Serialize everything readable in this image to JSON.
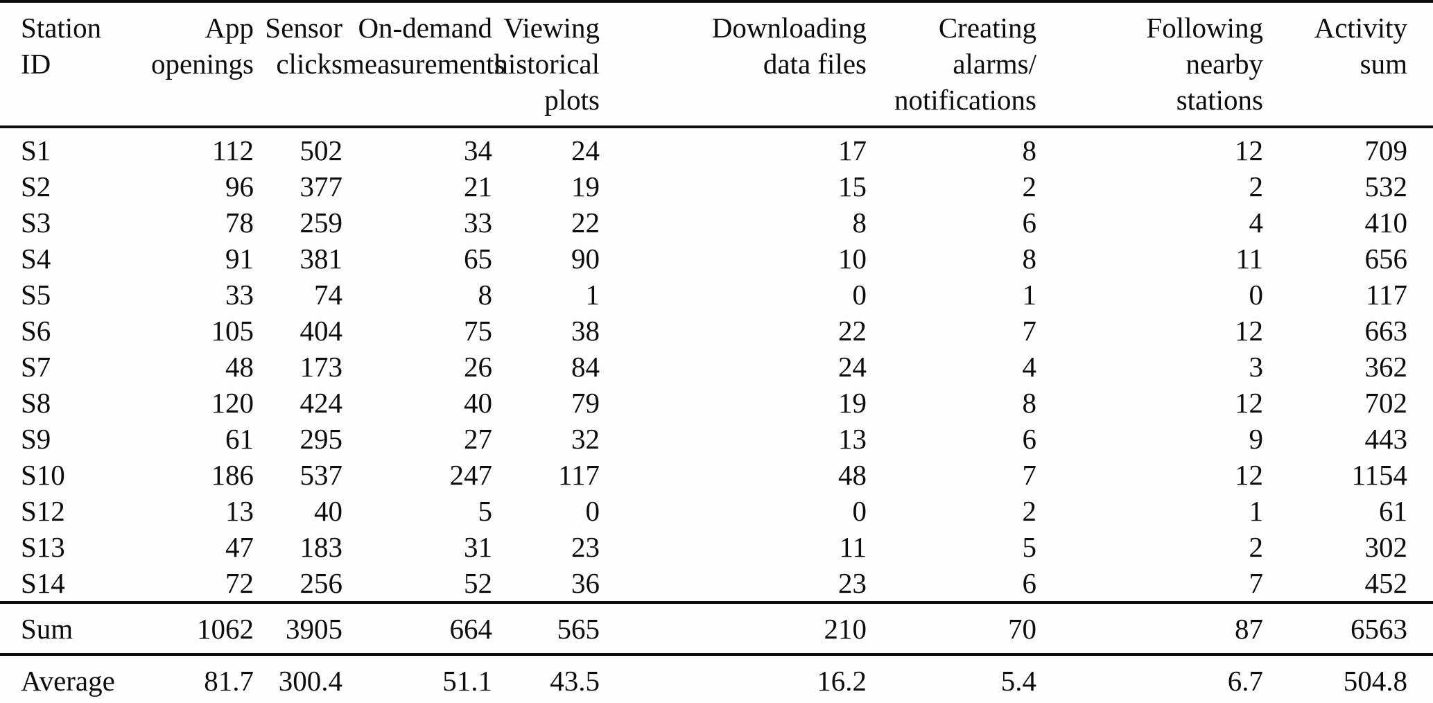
{
  "table": {
    "title_semantic": "station-app-activity-table",
    "headers": [
      "Station\nID",
      "App\nopenings",
      "Sensor\nclicks",
      "On-demand\nmeasurements",
      "Viewing\nhistorical\nplots",
      "Downloading\ndata files",
      "Creating alarms/\nnotifications",
      "Following\nnearby\nstations",
      "Activity\nsum"
    ],
    "station_rows": [
      [
        "S1",
        "112",
        "502",
        "34",
        "24",
        "17",
        "8",
        "12",
        "709"
      ],
      [
        "S2",
        "96",
        "377",
        "21",
        "19",
        "15",
        "2",
        "2",
        "532"
      ],
      [
        "S3",
        "78",
        "259",
        "33",
        "22",
        "8",
        "6",
        "4",
        "410"
      ],
      [
        "S4",
        "91",
        "381",
        "65",
        "90",
        "10",
        "8",
        "11",
        "656"
      ],
      [
        "S5",
        "33",
        "74",
        "8",
        "1",
        "0",
        "1",
        "0",
        "117"
      ],
      [
        "S6",
        "105",
        "404",
        "75",
        "38",
        "22",
        "7",
        "12",
        "663"
      ],
      [
        "S7",
        "48",
        "173",
        "26",
        "84",
        "24",
        "4",
        "3",
        "362"
      ],
      [
        "S8",
        "120",
        "424",
        "40",
        "79",
        "19",
        "8",
        "12",
        "702"
      ],
      [
        "S9",
        "61",
        "295",
        "27",
        "32",
        "13",
        "6",
        "9",
        "443"
      ],
      [
        "S10",
        "186",
        "537",
        "247",
        "117",
        "48",
        "7",
        "12",
        "1154"
      ],
      [
        "S12",
        "13",
        "40",
        "5",
        "0",
        "0",
        "2",
        "1",
        "61"
      ],
      [
        "S13",
        "47",
        "183",
        "31",
        "23",
        "11",
        "5",
        "2",
        "302"
      ],
      [
        "S14",
        "72",
        "256",
        "52",
        "36",
        "23",
        "6",
        "7",
        "452"
      ]
    ],
    "sum_row": [
      "Sum",
      "1062",
      "3905",
      "664",
      "565",
      "210",
      "70",
      "87",
      "6563"
    ],
    "average_row": [
      "Average",
      "81.7",
      "300.4",
      "51.1",
      "43.5",
      "16.2",
      "5.4",
      "6.7",
      "504.8"
    ]
  },
  "chart_data": {
    "type": "table",
    "columns": [
      "Station ID",
      "App openings",
      "Sensor clicks",
      "On-demand measurements",
      "Viewing historical plots",
      "Downloading data files",
      "Creating alarms/notifications",
      "Following nearby stations",
      "Activity sum"
    ],
    "rows": [
      [
        "S1",
        112,
        502,
        34,
        24,
        17,
        8,
        12,
        709
      ],
      [
        "S2",
        96,
        377,
        21,
        19,
        15,
        2,
        2,
        532
      ],
      [
        "S3",
        78,
        259,
        33,
        22,
        8,
        6,
        4,
        410
      ],
      [
        "S4",
        91,
        381,
        65,
        90,
        10,
        8,
        11,
        656
      ],
      [
        "S5",
        33,
        74,
        8,
        1,
        0,
        1,
        0,
        117
      ],
      [
        "S6",
        105,
        404,
        75,
        38,
        22,
        7,
        12,
        663
      ],
      [
        "S7",
        48,
        173,
        26,
        84,
        24,
        4,
        3,
        362
      ],
      [
        "S8",
        120,
        424,
        40,
        79,
        19,
        8,
        12,
        702
      ],
      [
        "S9",
        61,
        295,
        27,
        32,
        13,
        6,
        9,
        443
      ],
      [
        "S10",
        186,
        537,
        247,
        117,
        48,
        7,
        12,
        1154
      ],
      [
        "S12",
        13,
        40,
        5,
        0,
        0,
        2,
        1,
        61
      ],
      [
        "S13",
        47,
        183,
        31,
        23,
        11,
        5,
        2,
        302
      ],
      [
        "S14",
        72,
        256,
        52,
        36,
        23,
        6,
        7,
        452
      ],
      [
        "Sum",
        1062,
        3905,
        664,
        565,
        210,
        70,
        87,
        6563
      ],
      [
        "Average",
        81.7,
        300.4,
        51.1,
        43.5,
        16.2,
        5.4,
        6.7,
        504.8
      ]
    ]
  },
  "colors": {
    "rule": "#0d0d0d",
    "text": "#0d0d0d",
    "background": "#fefefe"
  }
}
